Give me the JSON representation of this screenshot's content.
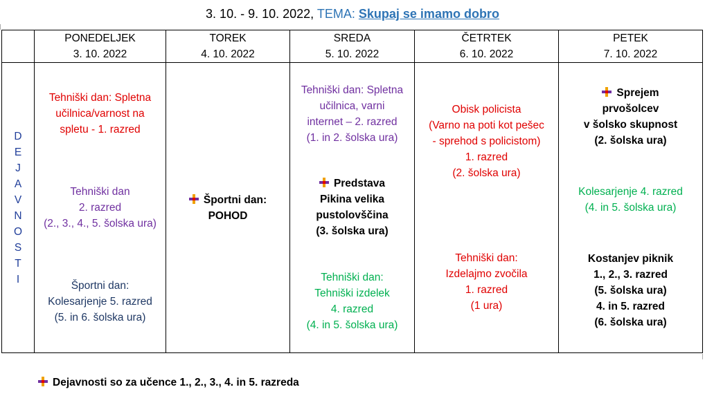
{
  "header": {
    "dates": "3. 10. -  9. 10. 2022,",
    "tema_label": "TEMA:",
    "tema_name": "Skupaj se imamo dobro"
  },
  "columns": [
    {
      "day": "PONEDELJEK",
      "date": "3. 10. 2022"
    },
    {
      "day": "TOREK",
      "date": "4. 10. 2022"
    },
    {
      "day": "SREDA",
      "date": "5. 10. 2022"
    },
    {
      "day": "ČETRTEK",
      "date": "6. 10. 2022"
    },
    {
      "day": "PETEK",
      "date": "7. 10. 2022"
    }
  ],
  "row_label_letters": [
    "D",
    "E",
    "J",
    "A",
    "V",
    "N",
    "O",
    "S",
    "T",
    "I"
  ],
  "cells": {
    "mon": [
      {
        "lines": [
          "Tehniški dan: Spletna",
          "učilnica/varnost na",
          "spletu - 1. razred"
        ],
        "color": "#e00000"
      },
      {
        "lines": [
          "Tehniški dan",
          "2. razred",
          "(2., 3., 4., 5. šolska ura)"
        ],
        "color": "#7030a0"
      },
      {
        "lines": [
          "Športni dan:",
          "Kolesarjenje 5. razred",
          "(5. in 6. šolska ura)"
        ],
        "color": "#1f3864"
      }
    ],
    "tue": [
      {
        "lines": [
          "Športni dan:",
          "POHOD"
        ],
        "marker": true
      }
    ],
    "wed": [
      {
        "lines": [
          "Tehniški dan: Spletna",
          "učilnica, varni",
          "internet – 2. razred",
          "(1. in 2. šolska ura)"
        ],
        "color": "#7030a0"
      },
      {
        "lines": [
          "Predstava",
          "Pikina velika",
          "pustolovščina",
          "(3. šolska ura)"
        ],
        "marker": true
      },
      {
        "lines": [
          "Tehniški dan:",
          "Tehniški izdelek",
          "4. razred",
          "(4. in 5. šolska ura)"
        ],
        "color": "#00b050"
      }
    ],
    "thu": [
      {
        "lines": [
          "Obisk policista",
          "(Varno na poti kot pešec",
          "- sprehod s policistom)",
          "1.  razred",
          "(2. šolska ura)"
        ],
        "color": "#e00000"
      },
      {
        "lines": [
          "Tehniški dan:",
          "Izdelajmo  zvočila",
          "1.  razred",
          "(1 ura)"
        ],
        "color": "#e00000"
      }
    ],
    "fri": [
      {
        "lines": [
          "Sprejem",
          "prvošolcev",
          "v šolsko skupnost",
          "(2. šolska ura)"
        ],
        "marker": true
      },
      {
        "lines": [
          "Kolesarjenje 4. razred",
          "(4. in 5. šolska ura)"
        ],
        "color": "#00b050"
      },
      {
        "lines": [
          "Kostanjev piknik",
          "1., 2., 3. razred",
          "(5. šolska ura)",
          "4. in 5. razred",
          "(6. šolska ura)"
        ]
      }
    ]
  },
  "footnote": "Dejavnosti so za učence 1., 2., 3., 4. in 5. razreda"
}
